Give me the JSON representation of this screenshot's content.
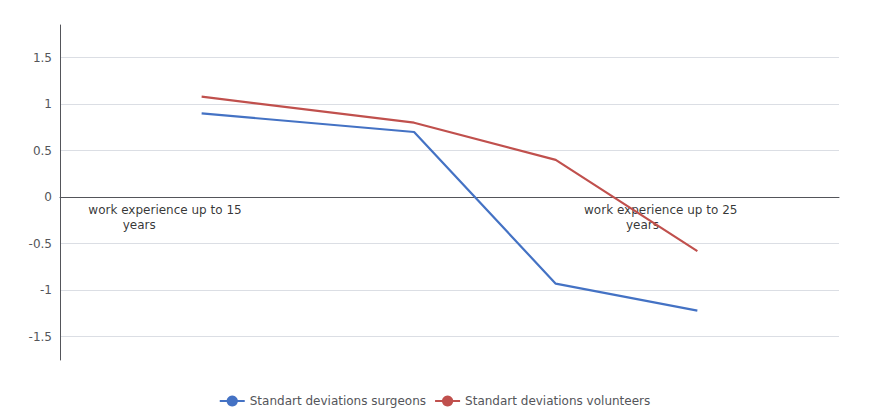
{
  "chart_data": {
    "type": "line",
    "series": [
      {
        "name": "Standart deviations surgeons",
        "color": "#4472C4",
        "x": [
          20,
          35,
          45,
          55
        ],
        "values": [
          0.9,
          0.7,
          -0.93,
          -1.22
        ]
      },
      {
        "name": "Standart deviations volunteers",
        "color": "#C0504D",
        "x": [
          20,
          35,
          45,
          55
        ],
        "values": [
          1.08,
          0.8,
          0.4,
          -0.58
        ]
      }
    ],
    "xlim": [
      10,
      65
    ],
    "ylim": [
      -1.75,
      1.85
    ],
    "yticks": [
      -1.5,
      -1,
      -0.5,
      0,
      0.5,
      1,
      1.5
    ],
    "tick_labels": "y",
    "grid": true,
    "legend": "bottom",
    "annotations": [
      {
        "text": "work experience up to 15\n         years",
        "x": 12,
        "y": -0.22
      },
      {
        "text": "work experience up to 25\n           years",
        "x": 47,
        "y": -0.22
      }
    ]
  }
}
